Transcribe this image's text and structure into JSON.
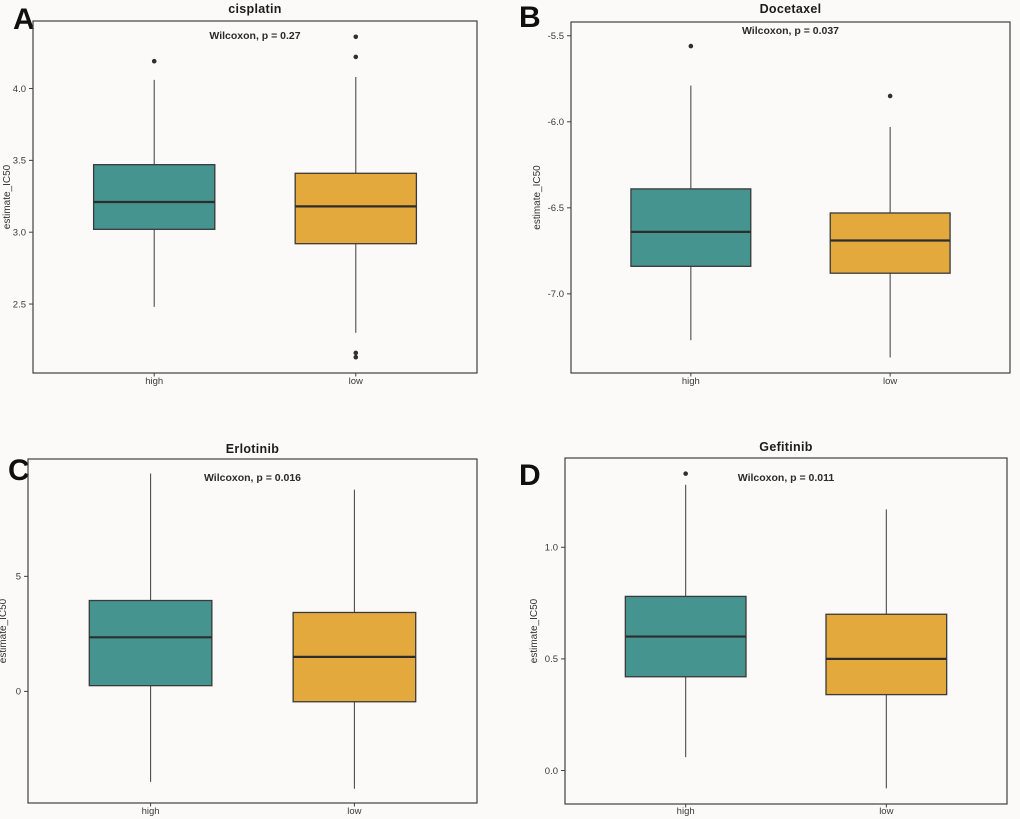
{
  "figure": {
    "background": "#FBFAF8",
    "panel_letters": [
      "A",
      "B",
      "C",
      "D"
    ]
  },
  "palette": {
    "high_fill": "#46948F",
    "low_fill": "#E4A93C",
    "line": "#3A3A3A"
  },
  "chart_data": [
    {
      "type": "box",
      "letter": "A",
      "title": "cisplatin",
      "annotation": "Wilcoxon, p = 0.27",
      "xlabel": "",
      "ylabel": "estimate_IC50",
      "categories": [
        "high",
        "low"
      ],
      "ylim": [
        2.02,
        4.47
      ],
      "ytick_values": [
        2.5,
        3.0,
        3.5,
        4.0
      ],
      "ytick_labels": [
        "2.5",
        "3.0",
        "3.5",
        "4.0"
      ],
      "grid": false,
      "legend": "none",
      "groups": [
        {
          "category": "high",
          "color": "#46948F",
          "whisker_low": 2.48,
          "q1": 3.02,
          "median": 3.21,
          "q3": 3.47,
          "whisker_high": 4.06,
          "outliers": [
            4.19
          ]
        },
        {
          "category": "low",
          "color": "#E4A93C",
          "whisker_low": 2.3,
          "q1": 2.92,
          "median": 3.18,
          "q3": 3.41,
          "whisker_high": 4.08,
          "outliers": [
            4.36,
            4.22,
            2.16,
            2.13
          ]
        }
      ]
    },
    {
      "type": "box",
      "letter": "B",
      "title": "Docetaxel",
      "annotation": "Wilcoxon, p = 0.037",
      "xlabel": "",
      "ylabel": "estimate_IC50",
      "categories": [
        "high",
        "low"
      ],
      "ylim": [
        -7.46,
        -5.42
      ],
      "ytick_values": [
        -7.0,
        -6.5,
        -6.0,
        -5.5
      ],
      "ytick_labels": [
        "-7.0",
        "-6.5",
        "-6.0",
        "-5.5"
      ],
      "grid": false,
      "legend": "none",
      "groups": [
        {
          "category": "high",
          "color": "#46948F",
          "whisker_low": -7.27,
          "q1": -6.84,
          "median": -6.64,
          "q3": -6.39,
          "whisker_high": -5.79,
          "outliers": [
            -5.56
          ]
        },
        {
          "category": "low",
          "color": "#E4A93C",
          "whisker_low": -7.37,
          "q1": -6.88,
          "median": -6.69,
          "q3": -6.53,
          "whisker_high": -6.03,
          "outliers": [
            -5.85
          ]
        }
      ]
    },
    {
      "type": "box",
      "letter": "C",
      "title": "Erlotinib",
      "annotation": "Wilcoxon, p = 0.016",
      "xlabel": "",
      "ylabel": "estimate_IC50",
      "categories": [
        "high",
        "low"
      ],
      "ylim": [
        -4.85,
        10.1
      ],
      "ytick_values": [
        0,
        5
      ],
      "ytick_labels": [
        "0",
        "5"
      ],
      "grid": false,
      "legend": "none",
      "groups": [
        {
          "category": "high",
          "color": "#46948F",
          "whisker_low": -3.93,
          "q1": 0.25,
          "median": 2.35,
          "q3": 3.95,
          "whisker_high": 9.47,
          "outliers": []
        },
        {
          "category": "low",
          "color": "#E4A93C",
          "whisker_low": -4.23,
          "q1": -0.45,
          "median": 1.5,
          "q3": 3.43,
          "whisker_high": 8.77,
          "outliers": []
        }
      ]
    },
    {
      "type": "box",
      "letter": "D",
      "title": "Gefitinib",
      "annotation": "Wilcoxon, p = 0.011",
      "xlabel": "",
      "ylabel": "estimate_IC50",
      "categories": [
        "high",
        "low"
      ],
      "ylim": [
        -0.15,
        1.4
      ],
      "ytick_values": [
        0.0,
        0.5,
        1.0
      ],
      "ytick_labels": [
        "0.0",
        "0.5",
        "1.0"
      ],
      "grid": false,
      "legend": "none",
      "groups": [
        {
          "category": "high",
          "color": "#46948F",
          "whisker_low": 0.06,
          "q1": 0.42,
          "median": 0.6,
          "q3": 0.78,
          "whisker_high": 1.28,
          "outliers": [
            1.33
          ]
        },
        {
          "category": "low",
          "color": "#E4A93C",
          "whisker_low": -0.08,
          "q1": 0.34,
          "median": 0.5,
          "q3": 0.7,
          "whisker_high": 1.17,
          "outliers": []
        }
      ]
    }
  ]
}
